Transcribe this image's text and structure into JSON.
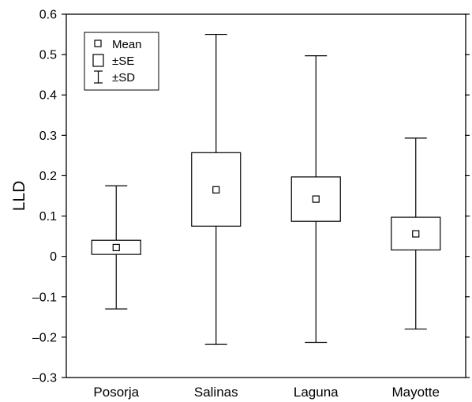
{
  "chart_data": {
    "type": "box",
    "title": "",
    "xlabel": "",
    "ylabel": "LLD",
    "ylim": [
      -0.3,
      0.6
    ],
    "yticks": [
      -0.3,
      -0.2,
      -0.1,
      0,
      0.1,
      0.2,
      0.3,
      0.4,
      0.5,
      0.6
    ],
    "ytick_labels": [
      "–0.3",
      "–0.2",
      "–0.1",
      "0",
      "0.1",
      "0.2",
      "0.3",
      "0.4",
      "0.5",
      "0.6"
    ],
    "categories": [
      "Posorja",
      "Salinas",
      "Laguna",
      "Mayotte"
    ],
    "series": [
      {
        "category": "Posorja",
        "mean": 0.022,
        "se_low": 0.005,
        "se_high": 0.04,
        "sd_low": -0.13,
        "sd_high": 0.175
      },
      {
        "category": "Salinas",
        "mean": 0.165,
        "se_low": 0.075,
        "se_high": 0.257,
        "sd_low": -0.218,
        "sd_high": 0.55
      },
      {
        "category": "Laguna",
        "mean": 0.142,
        "se_low": 0.087,
        "se_high": 0.197,
        "sd_low": -0.213,
        "sd_high": 0.497
      },
      {
        "category": "Mayotte",
        "mean": 0.056,
        "se_low": 0.016,
        "se_high": 0.097,
        "sd_low": -0.18,
        "sd_high": 0.293
      }
    ],
    "legend": {
      "position": "top-left",
      "entries": [
        {
          "symbol": "mean-square",
          "label": "Mean"
        },
        {
          "symbol": "se-box",
          "label": "±SE"
        },
        {
          "symbol": "sd-whisker",
          "label": "±SD"
        }
      ]
    },
    "colors": {
      "stroke": "#000000",
      "fill": "#ffffff"
    }
  }
}
